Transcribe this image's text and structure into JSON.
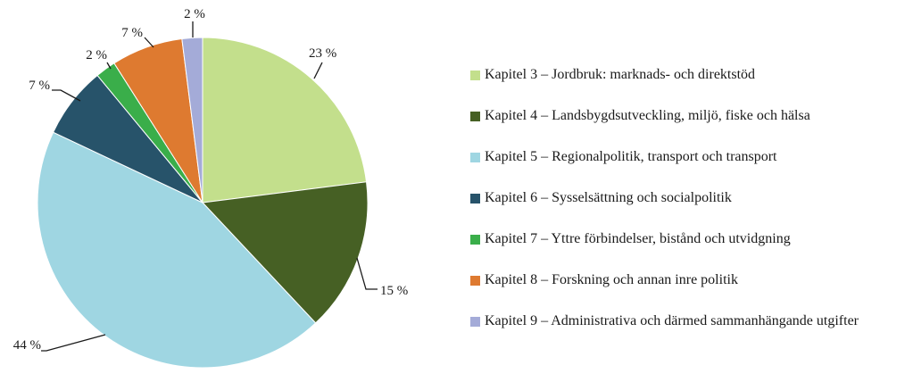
{
  "chart_data": {
    "type": "pie",
    "start_angle": "12 o'clock",
    "direction": "clockwise",
    "slices": [
      {
        "name": "Kapitel 3 – Jordbruk: marknads- och direktstöd",
        "value": 23,
        "label": "23 %",
        "color": "#c3df8c"
      },
      {
        "name": "Kapitel 4 – Landsbygdsutveckling, miljö, fiske och hälsa",
        "value": 15,
        "label": "15 %",
        "color": "#466024"
      },
      {
        "name": "Kapitel 5 – Regionalpolitik, transport och transport",
        "value": 44,
        "label": "44 %",
        "color": "#9fd6e2"
      },
      {
        "name": "Kapitel 6 – Sysselsättning och socialpolitik",
        "value": 7,
        "label": "7 %",
        "color": "#27536a"
      },
      {
        "name": "Kapitel 7 – Yttre förbindelser, bistånd och utvidgning",
        "value": 2,
        "label": "2 %",
        "color": "#3aae4a"
      },
      {
        "name": "Kapitel 8 – Forskning och annan inre politik",
        "value": 7,
        "label": "7 %",
        "color": "#de7a30"
      },
      {
        "name": "Kapitel 9 – Administrativa och därmed sammanhängande utgifter",
        "value": 2,
        "label": "2 %",
        "color": "#a4abd8"
      }
    ],
    "legend_position": "right"
  }
}
